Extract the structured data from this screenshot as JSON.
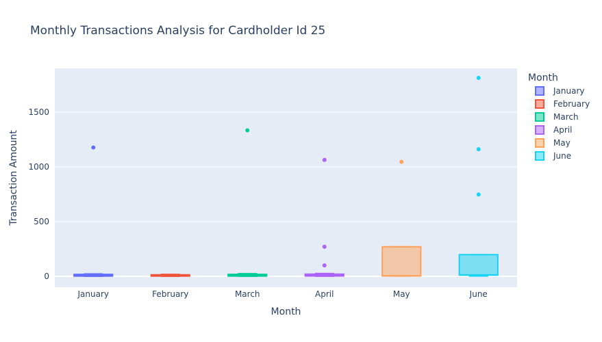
{
  "chart_data": {
    "type": "box",
    "title": "Monthly Transactions Analysis for Cardholder Id 25",
    "xlabel": "Month",
    "ylabel": "Transaction Amount",
    "ylim": [
      -100,
      1900
    ],
    "yticks": [
      0,
      500,
      1000,
      1500
    ],
    "ytick_labels": [
      "0",
      "500",
      "1000",
      "1500"
    ],
    "legend_title": "Month",
    "legend_position": "right",
    "categories": [
      "January",
      "February",
      "March",
      "April",
      "May",
      "June"
    ],
    "series": [
      {
        "name": "January",
        "color": "#636efa",
        "fill": "rgba(99,110,250,0.5)",
        "box": {
          "q1": 2,
          "median": 10,
          "q3": 18,
          "lowerfence": 1,
          "upperfence": 22
        },
        "outliers": [
          1177
        ]
      },
      {
        "name": "February",
        "color": "#EF553B",
        "fill": "rgba(239,85,59,0.5)",
        "box": {
          "q1": 2,
          "median": 8,
          "q3": 14,
          "lowerfence": 1,
          "upperfence": 18
        },
        "outliers": []
      },
      {
        "name": "March",
        "color": "#00cc96",
        "fill": "rgba(0,204,150,0.5)",
        "box": {
          "q1": 2,
          "median": 10,
          "q3": 18,
          "lowerfence": 1,
          "upperfence": 24
        },
        "outliers": [
          1334
        ]
      },
      {
        "name": "April",
        "color": "#ab63fa",
        "fill": "rgba(171,99,250,0.5)",
        "box": {
          "q1": 3,
          "median": 12,
          "q3": 20,
          "lowerfence": 1,
          "upperfence": 26
        },
        "outliers": [
          1064,
          270,
          100
        ]
      },
      {
        "name": "May",
        "color": "#FFA15A",
        "fill": "rgba(255,161,90,0.5)",
        "box": {
          "q1": 3,
          "median": 5,
          "q3": 270,
          "lowerfence": 2,
          "upperfence": 270
        },
        "outliers": [
          1046
        ]
      },
      {
        "name": "June",
        "color": "#19d3f3",
        "fill": "rgba(25,211,243,0.5)",
        "box": {
          "q1": 11,
          "median": 13,
          "q3": 198,
          "lowerfence": 2,
          "upperfence": 198
        },
        "outliers": [
          1813,
          1162,
          748
        ]
      }
    ]
  }
}
